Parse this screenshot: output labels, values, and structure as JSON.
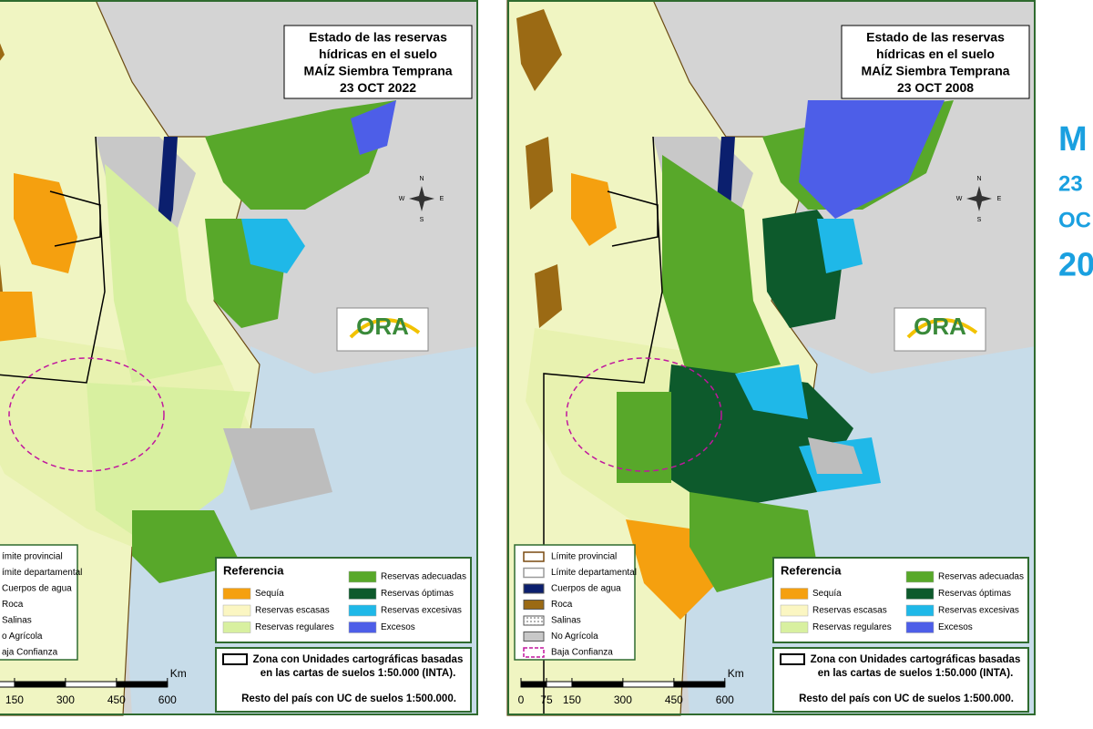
{
  "maps": [
    {
      "title": [
        "Estado de las reservas",
        "hídricas en el suelo",
        "MAÍZ Siembra Temprana",
        "23 OCT 2022"
      ],
      "legend": [
        {
          "label": "ímite provincial",
          "color": "#7a4a10",
          "style": "outline"
        },
        {
          "label": "ímite departamental",
          "color": "#9a9a9a",
          "style": "outline"
        },
        {
          "label": "Cuerpos de agua",
          "color": "#0b1f6e",
          "style": "fill"
        },
        {
          "label": "Roca",
          "color": "#9b6a14",
          "style": "fill"
        },
        {
          "label": "Salinas",
          "color": "#888888",
          "style": "dotted"
        },
        {
          "label": "o Agrícola",
          "color": "#c8c8c8",
          "style": "fill"
        },
        {
          "label": "aja Confianza",
          "color": "#c0179e",
          "style": "dashed"
        }
      ],
      "reference": {
        "heading": "Referencia",
        "items": [
          {
            "label": "Sequía",
            "color": "#f5a00f"
          },
          {
            "label": "Reservas escasas",
            "color": "#fbf6c2"
          },
          {
            "label": "Reservas regulares",
            "color": "#d8f0a0"
          },
          {
            "label": "Reservas adecuadas",
            "color": "#58a82a"
          },
          {
            "label": "Reservas óptimas",
            "color": "#0d5a2c"
          },
          {
            "label": "Reservas excesivas",
            "color": "#1fb8e8"
          },
          {
            "label": "Excesos",
            "color": "#4d5ee8"
          }
        ]
      },
      "zone_note": [
        "Zona con Unidades cartográficas basadas",
        "en las cartas de suelos 1:50.000 (INTA)."
      ],
      "rest_note": "Resto del país con UC de suelos 1:500.000.",
      "scale_ticks": [
        150,
        300,
        450,
        600
      ],
      "scale_unit": "Km",
      "logo": "ORA",
      "compass": [
        "N",
        "S",
        "E",
        "W"
      ]
    },
    {
      "title": [
        "Estado de las reservas",
        "hídricas en el suelo",
        "MAÍZ Siembra Temprana",
        "23 OCT 2008"
      ],
      "legend": [
        {
          "label": "Límite provincial",
          "color": "#7a4a10",
          "style": "outline"
        },
        {
          "label": "Límite departamental",
          "color": "#9a9a9a",
          "style": "outline"
        },
        {
          "label": "Cuerpos de agua",
          "color": "#0b1f6e",
          "style": "fill"
        },
        {
          "label": "Roca",
          "color": "#9b6a14",
          "style": "fill"
        },
        {
          "label": "Salinas",
          "color": "#888888",
          "style": "dotted"
        },
        {
          "label": "No Agrícola",
          "color": "#c8c8c8",
          "style": "fill"
        },
        {
          "label": "Baja Confianza",
          "color": "#c0179e",
          "style": "dashed"
        }
      ],
      "reference": {
        "heading": "Referencia",
        "items": [
          {
            "label": "Sequía",
            "color": "#f5a00f"
          },
          {
            "label": "Reservas escasas",
            "color": "#fbf6c2"
          },
          {
            "label": "Reservas regulares",
            "color": "#d8f0a0"
          },
          {
            "label": "Reservas adecuadas",
            "color": "#58a82a"
          },
          {
            "label": "Reservas óptimas",
            "color": "#0d5a2c"
          },
          {
            "label": "Reservas excesivas",
            "color": "#1fb8e8"
          },
          {
            "label": "Excesos",
            "color": "#4d5ee8"
          }
        ]
      },
      "zone_note": [
        "Zona con Unidades cartográficas basadas",
        "en las cartas de suelos 1:50.000 (INTA)."
      ],
      "rest_note": "Resto del país con UC de suelos 1:500.000.",
      "scale_ticks": [
        0,
        75,
        150,
        300,
        450,
        600
      ],
      "scale_unit": "Km",
      "logo": "ORA",
      "compass": [
        "N",
        "S",
        "E",
        "W"
      ]
    }
  ],
  "side_text": [
    "M",
    "23",
    "OC",
    "20"
  ]
}
